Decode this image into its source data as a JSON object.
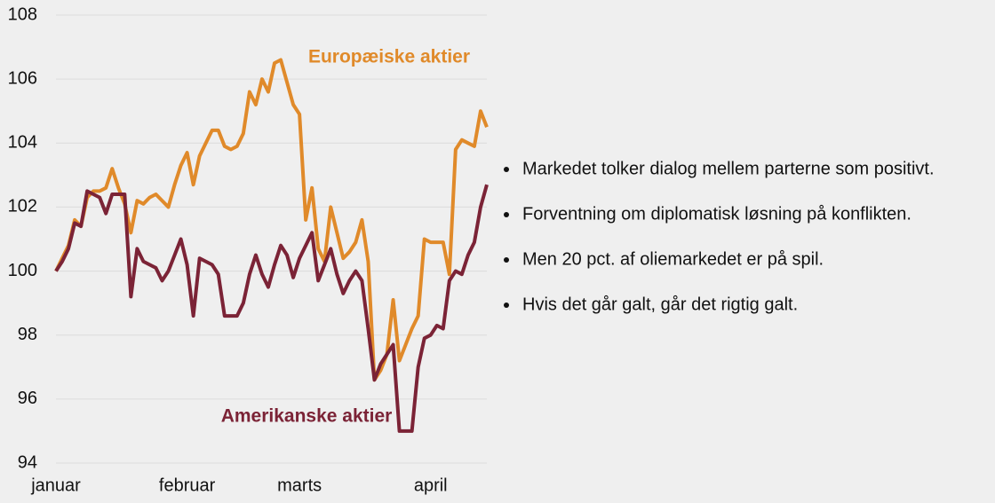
{
  "chart_data": {
    "type": "line",
    "categories": [
      "januar",
      null,
      null,
      null,
      null,
      null,
      null,
      null,
      null,
      null,
      null,
      null,
      null,
      null,
      null,
      null,
      null,
      null,
      null,
      null,
      null,
      "februar",
      null,
      null,
      null,
      null,
      null,
      null,
      null,
      null,
      null,
      null,
      null,
      null,
      null,
      null,
      null,
      null,
      null,
      "marts",
      null,
      null,
      null,
      null,
      null,
      null,
      null,
      null,
      null,
      null,
      null,
      null,
      null,
      null,
      null,
      null,
      null,
      null,
      null,
      null,
      "april",
      null,
      null,
      null,
      null,
      null,
      null,
      null,
      null,
      null
    ],
    "series": [
      {
        "name": "Europæiske aktier",
        "color": "#e08a2a",
        "values": [
          100.0,
          100.4,
          100.8,
          101.6,
          101.4,
          102.3,
          102.5,
          102.5,
          102.6,
          103.2,
          102.6,
          102.1,
          101.2,
          102.2,
          102.1,
          102.3,
          102.4,
          102.2,
          102.0,
          102.7,
          103.3,
          103.7,
          102.7,
          103.6,
          104.0,
          104.4,
          104.4,
          103.9,
          103.8,
          103.9,
          104.3,
          105.6,
          105.2,
          106.0,
          105.6,
          106.5,
          106.6,
          105.9,
          105.2,
          104.9,
          101.6,
          102.6,
          100.7,
          100.3,
          102.0,
          101.2,
          100.4,
          100.6,
          100.9,
          101.6,
          100.3,
          96.6,
          96.9,
          97.4,
          99.1,
          97.2,
          97.7,
          98.2,
          98.6,
          101.0,
          100.9,
          100.9,
          100.9,
          99.9,
          103.8,
          104.1,
          104.0,
          103.9,
          105.0,
          104.5
        ]
      },
      {
        "name": "Amerikanske aktier",
        "color": "#7b2336",
        "values": [
          100.0,
          100.3,
          100.7,
          101.5,
          101.4,
          102.5,
          102.4,
          102.3,
          101.8,
          102.4,
          102.4,
          102.4,
          99.2,
          100.7,
          100.3,
          100.2,
          100.1,
          99.7,
          100.0,
          100.5,
          101.0,
          100.2,
          98.6,
          100.4,
          100.3,
          100.2,
          99.9,
          98.6,
          98.6,
          98.6,
          99.0,
          99.9,
          100.5,
          99.9,
          99.5,
          100.2,
          100.8,
          100.5,
          99.8,
          100.4,
          100.8,
          101.2,
          99.7,
          100.2,
          100.7,
          99.9,
          99.3,
          99.7,
          100.0,
          99.7,
          98.2,
          96.6,
          97.1,
          97.4,
          97.7,
          95.0,
          95.0,
          95.0,
          97.0,
          97.9,
          98.0,
          98.3,
          98.2,
          99.7,
          100.0,
          99.9,
          100.5,
          100.9,
          102.0,
          102.7
        ]
      }
    ],
    "ylim": [
      94,
      108
    ],
    "yticks": [
      94,
      96,
      98,
      100,
      102,
      104,
      106,
      108
    ],
    "grid": true
  },
  "notes": [
    "Markedet tolker dialog mellem parterne som positivt.",
    "Forventning om diplomatisk løsning på konflikten.",
    "Men 20 pct. af oliemarkedet er på spil.",
    "Hvis det går galt, går det rigtig galt."
  ]
}
